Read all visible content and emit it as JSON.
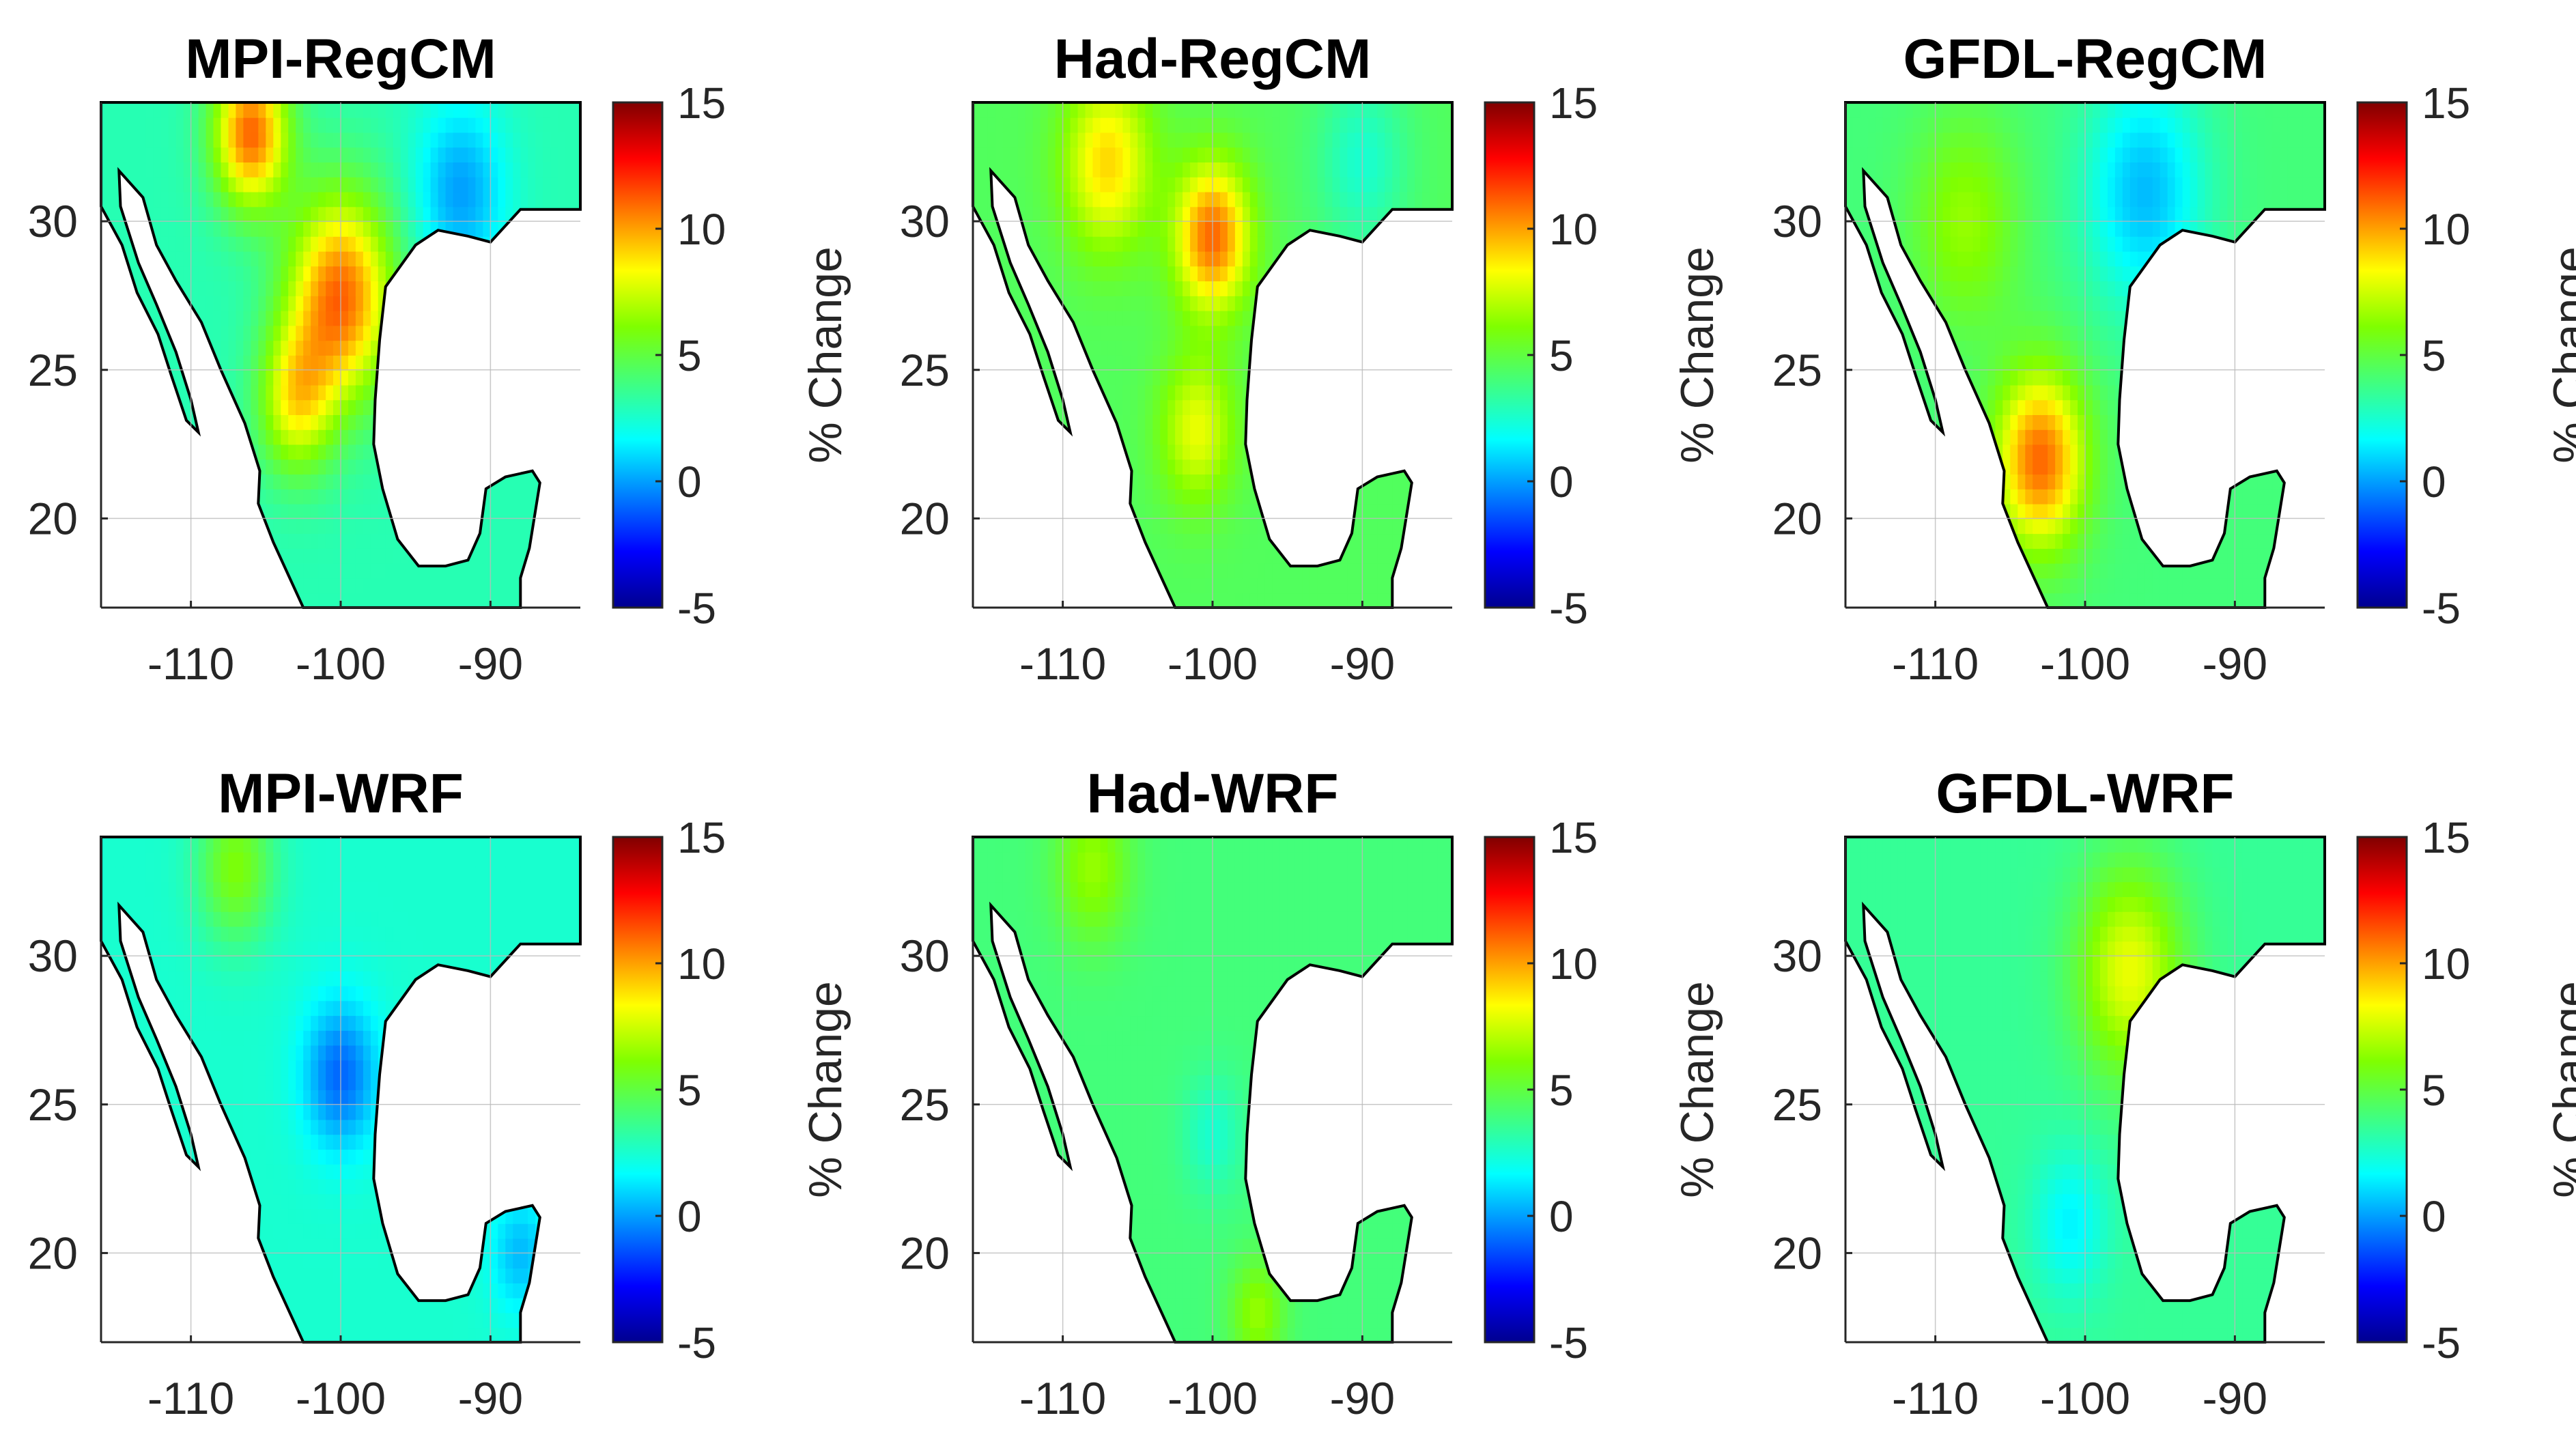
{
  "figure": {
    "colorbar_label": "% Change",
    "colorbar_ticks": [
      "15",
      "10",
      "5",
      "0",
      "-5"
    ],
    "colormap": [
      "#00008F",
      "#0000FF",
      "#007FFF",
      "#00FFFF",
      "#40FF80",
      "#7FFF00",
      "#FFFF00",
      "#FF8000",
      "#FF0000",
      "#800000"
    ]
  },
  "chart_data": [
    {
      "type": "heatmap",
      "title": "MPI-RegCM",
      "xlabel": "",
      "ylabel": "",
      "xlim": [
        -116,
        -84
      ],
      "ylim": [
        17,
        34
      ],
      "xticks": [
        "-110",
        "-100",
        "-90"
      ],
      "yticks": [
        "20",
        "25",
        "30"
      ],
      "clim": [
        -5,
        15
      ],
      "colorbar_label": "% Change",
      "field": {
        "base": 3,
        "hotspots": [
          {
            "lon": -100,
            "lat": 27.5,
            "value": 11,
            "spread": 3.5
          },
          {
            "lon": -106,
            "lat": 33,
            "value": 11,
            "spread": 2.5
          },
          {
            "lon": -103,
            "lat": 24,
            "value": 8,
            "spread": 2.5
          },
          {
            "lon": -92,
            "lat": 31,
            "value": 0,
            "spread": 3
          }
        ]
      }
    },
    {
      "type": "heatmap",
      "title": "Had-RegCM",
      "xlabel": "",
      "ylabel": "",
      "xlim": [
        -116,
        -84
      ],
      "ylim": [
        17,
        34
      ],
      "xticks": [
        "-110",
        "-100",
        "-90"
      ],
      "yticks": [
        "20",
        "25",
        "30"
      ],
      "clim": [
        -5,
        15
      ],
      "colorbar_label": "% Change",
      "field": {
        "base": 4.5,
        "hotspots": [
          {
            "lon": -100,
            "lat": 29.5,
            "value": 11,
            "spread": 2.5
          },
          {
            "lon": -107,
            "lat": 32,
            "value": 9,
            "spread": 3
          },
          {
            "lon": -101,
            "lat": 23,
            "value": 8,
            "spread": 2.5
          },
          {
            "lon": -90,
            "lat": 32,
            "value": 2.5,
            "spread": 3
          }
        ]
      }
    },
    {
      "type": "heatmap",
      "title": "GFDL-RegCM",
      "xlabel": "",
      "ylabel": "",
      "xlim": [
        -116,
        -84
      ],
      "ylim": [
        17,
        34
      ],
      "xticks": [
        "-110",
        "-100",
        "-90"
      ],
      "yticks": [
        "20",
        "25",
        "30"
      ],
      "clim": [
        -5,
        15
      ],
      "colorbar_label": "% Change",
      "field": {
        "base": 4,
        "hotspots": [
          {
            "lon": -103,
            "lat": 22,
            "value": 11,
            "spread": 3
          },
          {
            "lon": -108,
            "lat": 30,
            "value": 6.5,
            "spread": 3.5
          },
          {
            "lon": -96,
            "lat": 31,
            "value": 0.5,
            "spread": 4
          }
        ]
      }
    },
    {
      "type": "heatmap",
      "title": "MPI-WRF",
      "xlabel": "",
      "ylabel": "",
      "xlim": [
        -116,
        -84
      ],
      "ylim": [
        17,
        34
      ],
      "xticks": [
        "-110",
        "-100",
        "-90"
      ],
      "yticks": [
        "20",
        "25",
        "30"
      ],
      "clim": [
        -5,
        15
      ],
      "colorbar_label": "% Change",
      "field": {
        "base": 2.5,
        "hotspots": [
          {
            "lon": -100,
            "lat": 26,
            "value": -1,
            "spread": 2.5
          },
          {
            "lon": -107,
            "lat": 33,
            "value": 6,
            "spread": 2.5
          },
          {
            "lon": -88,
            "lat": 20,
            "value": 0.5,
            "spread": 2
          }
        ]
      }
    },
    {
      "type": "heatmap",
      "title": "Had-WRF",
      "xlabel": "",
      "ylabel": "",
      "xlim": [
        -116,
        -84
      ],
      "ylim": [
        17,
        34
      ],
      "xticks": [
        "-110",
        "-100",
        "-90"
      ],
      "yticks": [
        "20",
        "25",
        "30"
      ],
      "clim": [
        -5,
        15
      ],
      "colorbar_label": "% Change",
      "field": {
        "base": 4,
        "hotspots": [
          {
            "lon": -108,
            "lat": 33,
            "value": 6.5,
            "spread": 2.5
          },
          {
            "lon": -97,
            "lat": 18,
            "value": 6.5,
            "spread": 1.8
          },
          {
            "lon": -100,
            "lat": 24,
            "value": 2.5,
            "spread": 2
          }
        ]
      }
    },
    {
      "type": "heatmap",
      "title": "GFDL-WRF",
      "xlabel": "",
      "ylabel": "",
      "xlim": [
        -116,
        -84
      ],
      "ylim": [
        17,
        34
      ],
      "xticks": [
        "-110",
        "-100",
        "-90"
      ],
      "yticks": [
        "20",
        "25",
        "30"
      ],
      "clim": [
        -5,
        15
      ],
      "colorbar_label": "% Change",
      "field": {
        "base": 3.5,
        "hotspots": [
          {
            "lon": -97,
            "lat": 29.5,
            "value": 8,
            "spread": 3.5
          },
          {
            "lon": -101,
            "lat": 21,
            "value": 1.5,
            "spread": 2.5
          }
        ]
      }
    }
  ]
}
